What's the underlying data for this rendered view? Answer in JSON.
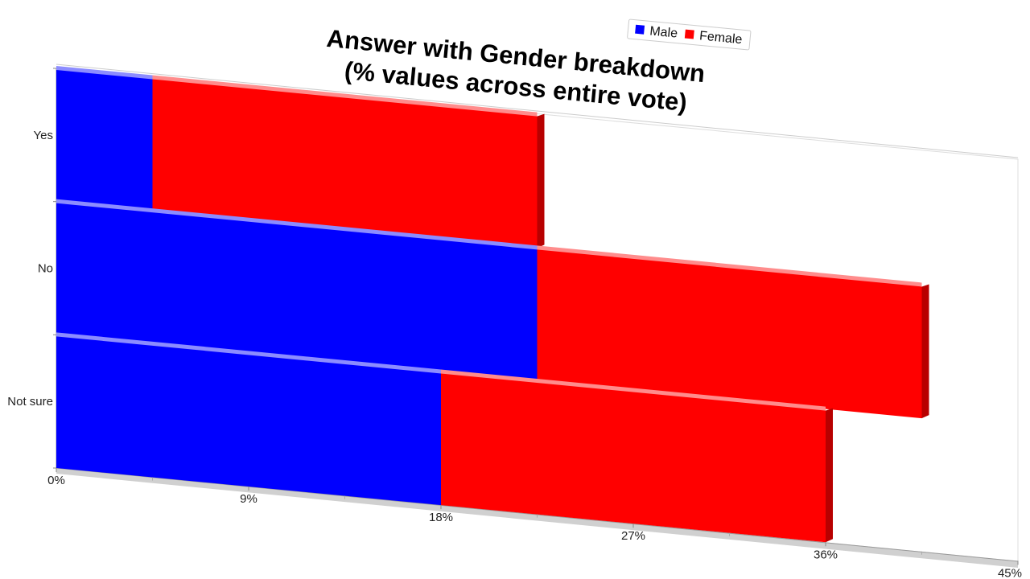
{
  "chart_data": {
    "type": "bar",
    "orientation": "horizontal",
    "stacked": true,
    "title_lines": [
      "Answer with Gender breakdown",
      "(% values across entire vote)"
    ],
    "categories": [
      "Yes",
      "No",
      "Not sure"
    ],
    "series": [
      {
        "name": "Male",
        "color": "#0000ff",
        "values": [
          4.5,
          22.5,
          18
        ]
      },
      {
        "name": "Female",
        "color": "#ff0000",
        "values": [
          18,
          18,
          18
        ]
      }
    ],
    "x_ticks": [
      "0%",
      "9%",
      "18%",
      "27%",
      "36%",
      "45%"
    ],
    "xlim": [
      0,
      45
    ],
    "legend_position": "top",
    "style": "3d-perspective"
  }
}
